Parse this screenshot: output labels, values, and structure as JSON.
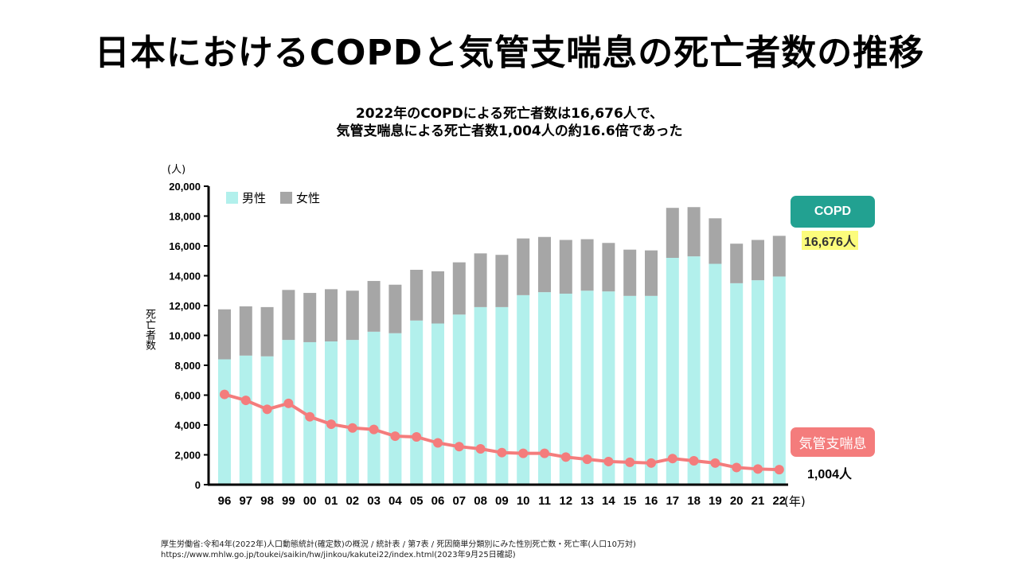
{
  "title": "日本におけるCOPDと気管支喘息の死亡者数の推移",
  "subtitle": {
    "line1": "2022年のCOPDによる死亡者数は16,676人で、",
    "line2": "気管支喘息による死亡者数1,004人の約16.6倍であった"
  },
  "colors": {
    "male": "#b2f0ec",
    "female": "#a6a6a6",
    "asthma_line": "#f47c7c",
    "copd_badge": "#22a191",
    "asthma_badge": "#f47c7c",
    "copd_highlight": "#fcfc7c"
  },
  "annotations": {
    "copd_label": "COPD",
    "copd_value": "16,676人",
    "asthma_label": "気管支喘息",
    "asthma_value": "1,004人"
  },
  "source": {
    "line1": "厚生労働省:令和4年(2022年)人口動態統計(確定数)の概況 / 統計表 / 第7表 / 死因簡単分類別にみた性別死亡数・死亡率(人口10万対)",
    "line2": "https://www.mhlw.go.jp/toukei/saikin/hw/jinkou/kakutei22/index.html(2023年9月25日確認)"
  },
  "chart_data": {
    "type": "bar",
    "stacked": true,
    "title": "",
    "xlabel": "(年)",
    "ylabel": "死亡者数",
    "yunit": "(人)",
    "ylim": [
      0,
      20000
    ],
    "yticks": [
      "0",
      "2,000",
      "4,000",
      "6,000",
      "8,000",
      "10,000",
      "12,000",
      "14,000",
      "16,000",
      "18,000",
      "20,000"
    ],
    "ytick_values": [
      0,
      2000,
      4000,
      6000,
      8000,
      10000,
      12000,
      14000,
      16000,
      18000,
      20000
    ],
    "grid": false,
    "legend_position": "top-left",
    "categories": [
      "96",
      "97",
      "98",
      "99",
      "00",
      "01",
      "02",
      "03",
      "04",
      "05",
      "06",
      "07",
      "08",
      "09",
      "10",
      "11",
      "12",
      "13",
      "14",
      "15",
      "16",
      "17",
      "18",
      "19",
      "20",
      "21",
      "22"
    ],
    "series": [
      {
        "name": "男性",
        "kind": "bar",
        "values": [
          8400,
          8650,
          8600,
          9700,
          9550,
          9600,
          9700,
          10250,
          10150,
          11000,
          10800,
          11400,
          11900,
          11900,
          12700,
          12900,
          12800,
          13000,
          12950,
          12650,
          12650,
          15200,
          15300,
          14800,
          13500,
          13700,
          13950
        ]
      },
      {
        "name": "女性",
        "kind": "bar",
        "values": [
          3350,
          3300,
          3300,
          3350,
          3300,
          3500,
          3300,
          3400,
          3250,
          3400,
          3500,
          3500,
          3600,
          3500,
          3800,
          3700,
          3600,
          3450,
          3250,
          3100,
          3050,
          3350,
          3300,
          3050,
          2650,
          2700,
          2726
        ]
      },
      {
        "name": "気管支喘息",
        "kind": "line",
        "values": [
          6050,
          5650,
          5050,
          5450,
          4550,
          4050,
          3800,
          3700,
          3250,
          3200,
          2800,
          2550,
          2400,
          2150,
          2100,
          2100,
          1850,
          1700,
          1550,
          1500,
          1450,
          1750,
          1600,
          1450,
          1150,
          1050,
          1004
        ]
      }
    ],
    "highlight": {
      "copd_2022_total": 16676,
      "asthma_2022": 1004,
      "ratio": 16.6
    }
  }
}
